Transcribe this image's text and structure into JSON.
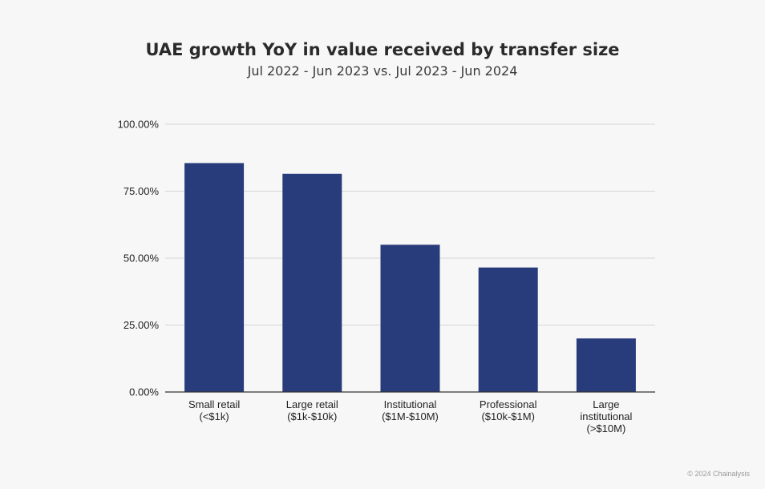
{
  "header": {
    "title": "UAE growth YoY in value received by transfer size",
    "subtitle": "Jul 2022 - Jun 2023 vs. Jul 2023 - Jun 2024"
  },
  "footer": {
    "credit": "© 2024 Chainalysis"
  },
  "chart_data": {
    "type": "bar",
    "title": "UAE growth YoY in value received by transfer size",
    "subtitle": "Jul 2022 - Jun 2023 vs. Jul 2023 - Jun 2024",
    "categories": [
      [
        "Small retail",
        "(<$1k)"
      ],
      [
        "Large retail",
        "($1k-$10k)"
      ],
      [
        "Institutional",
        "($1M-$10M)"
      ],
      [
        "Professional",
        "($10k-$1M)"
      ],
      [
        "Large",
        "institutional",
        "(>$10M)"
      ]
    ],
    "values": [
      85.5,
      81.5,
      55.0,
      46.5,
      20.0
    ],
    "ylim": [
      0,
      100
    ],
    "yticks": [
      0,
      25,
      50,
      75,
      100
    ],
    "ytick_labels": [
      "0.00%",
      "25.00%",
      "50.00%",
      "75.00%",
      "100.00%"
    ],
    "bar_color": "#283b7b",
    "grid": true,
    "legend": false
  }
}
